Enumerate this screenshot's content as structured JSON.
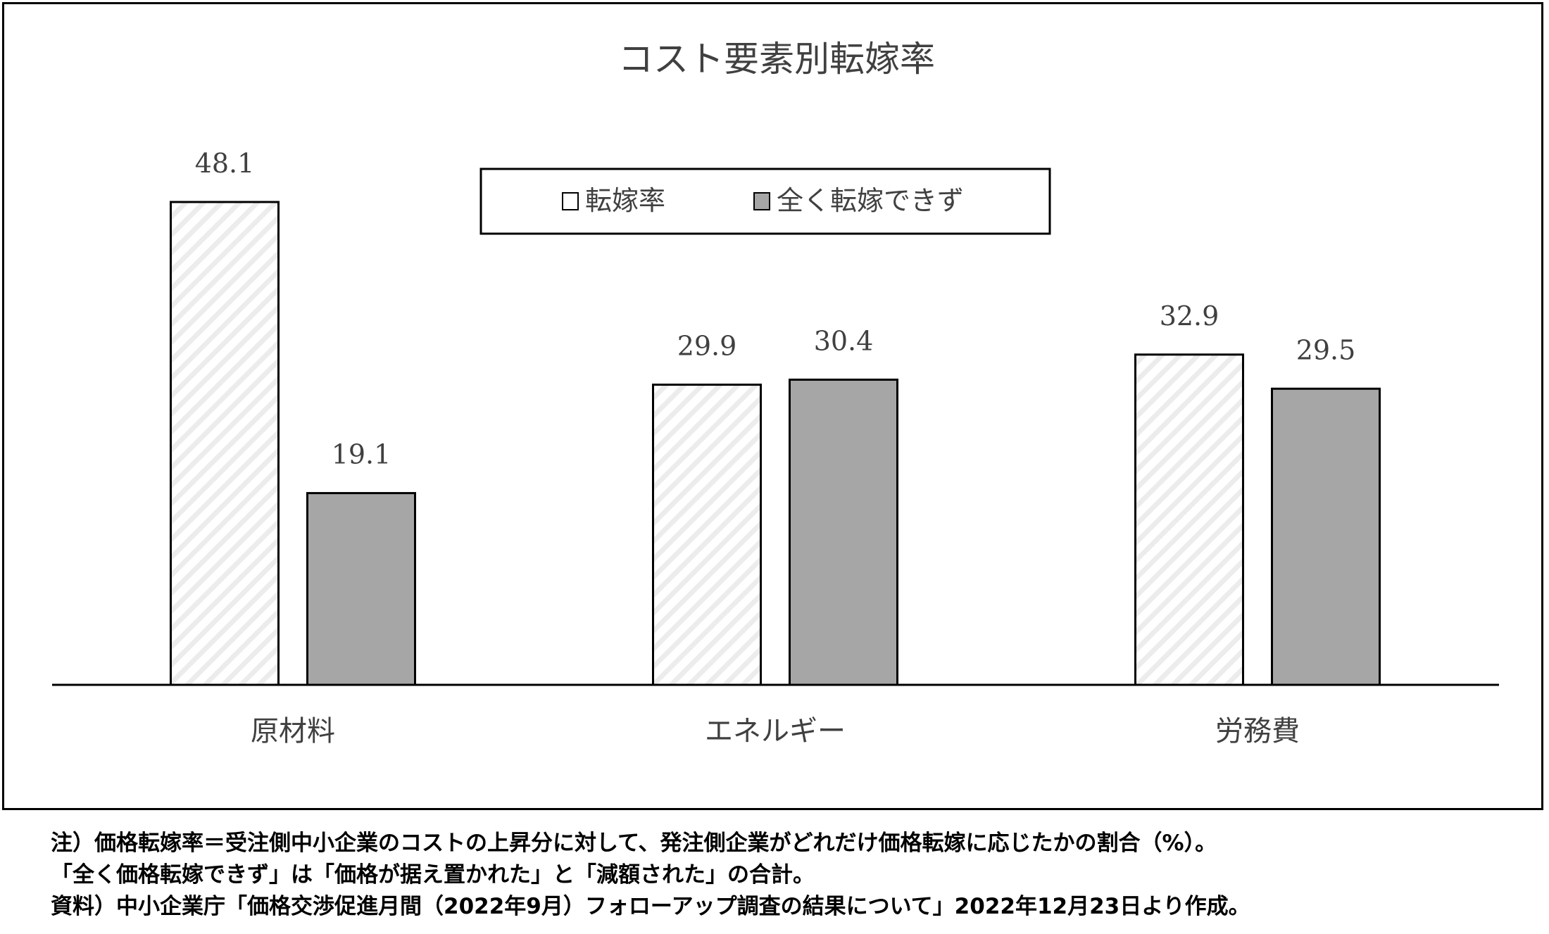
{
  "chart_data": {
    "type": "bar",
    "title": "コスト要素別転嫁率",
    "categories": [
      "原材料",
      "エネルギー",
      "労務費"
    ],
    "series": [
      {
        "name": "転嫁率",
        "values": [
          48.1,
          29.9,
          32.9
        ],
        "color": "#ffffff",
        "pattern": "light-diagonal-hatch"
      },
      {
        "name": "全く転嫁できず",
        "values": [
          19.1,
          30.4,
          29.5
        ],
        "color": "#a6a6a6"
      }
    ],
    "data_labels": [
      [
        "48.1",
        "29.9",
        "32.9"
      ],
      [
        "19.1",
        "30.4",
        "29.5"
      ]
    ],
    "legend_position": "top-center",
    "ylim": [
      0,
      55
    ],
    "grid": false,
    "xlabel": "",
    "ylabel": ""
  },
  "notes": [
    "注）価格転嫁率＝受注側中小企業のコストの上昇分に対して、発注側企業がどれだけ価格転嫁に応じたかの割合（%）。",
    "「全く価格転嫁できず」は「価格が据え置かれた」と「減額された」の合計。",
    "資料）中小企業庁「価格交渉促進月間（2022年9月）フォローアップ調査の結果について」2022年12月23日より作成。"
  ]
}
